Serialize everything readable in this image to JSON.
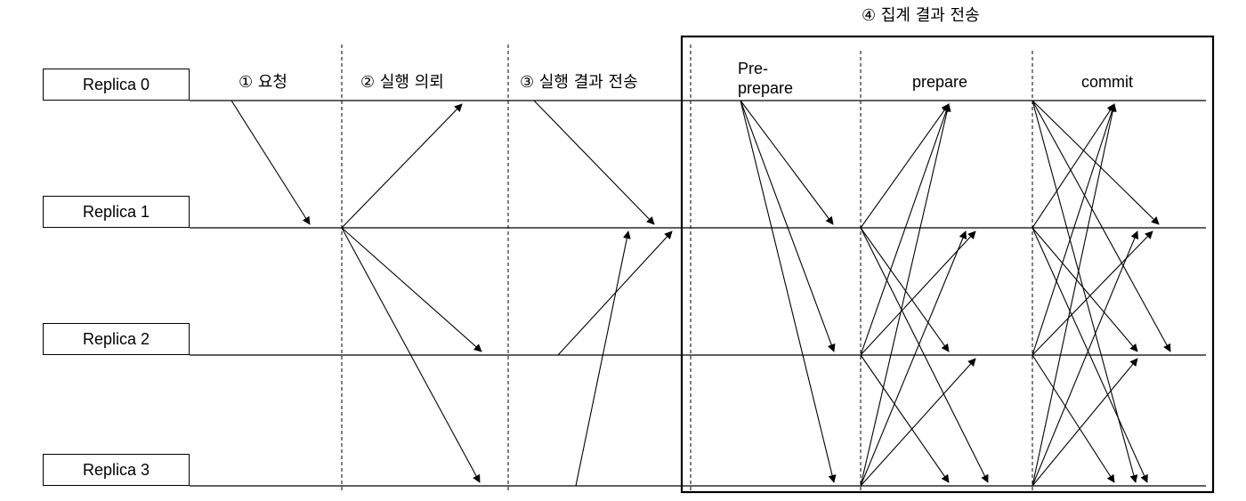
{
  "replicas": [
    "Replica 0",
    "Replica 1",
    "Replica 2",
    "Replica 3"
  ],
  "steps": {
    "request": "① 요청",
    "execute_request": "② 실행 의뢰",
    "send_result": "③ 실행 결과 전송",
    "aggregate": "④ 집계 결과 전송"
  },
  "phases": {
    "preprepare_line1": "Pre-",
    "preprepare_line2": "prepare",
    "prepare": "prepare",
    "commit": "commit"
  },
  "messages": [
    {
      "from": 0,
      "to": 1,
      "stage": "request"
    },
    {
      "from": 1,
      "to": 0,
      "stage": "execute_request"
    },
    {
      "from": 1,
      "to": 2,
      "stage": "execute_request"
    },
    {
      "from": 1,
      "to": 3,
      "stage": "execute_request"
    },
    {
      "from": 0,
      "to": 1,
      "stage": "send_result"
    },
    {
      "from": 2,
      "to": 1,
      "stage": "send_result"
    },
    {
      "from": 3,
      "to": 1,
      "stage": "send_result"
    },
    {
      "from": 0,
      "to": 1,
      "stage": "pre-prepare"
    },
    {
      "from": 0,
      "to": 2,
      "stage": "pre-prepare"
    },
    {
      "from": 0,
      "to": 3,
      "stage": "pre-prepare"
    },
    {
      "from": 1,
      "to": 0,
      "stage": "prepare"
    },
    {
      "from": 1,
      "to": 2,
      "stage": "prepare"
    },
    {
      "from": 1,
      "to": 3,
      "stage": "prepare"
    },
    {
      "from": 2,
      "to": 0,
      "stage": "prepare"
    },
    {
      "from": 2,
      "to": 1,
      "stage": "prepare"
    },
    {
      "from": 2,
      "to": 3,
      "stage": "prepare"
    },
    {
      "from": 3,
      "to": 0,
      "stage": "prepare"
    },
    {
      "from": 3,
      "to": 1,
      "stage": "prepare"
    },
    {
      "from": 3,
      "to": 2,
      "stage": "prepare"
    },
    {
      "from": 0,
      "to": 1,
      "stage": "commit"
    },
    {
      "from": 0,
      "to": 2,
      "stage": "commit"
    },
    {
      "from": 0,
      "to": 3,
      "stage": "commit"
    },
    {
      "from": 1,
      "to": 0,
      "stage": "commit"
    },
    {
      "from": 1,
      "to": 2,
      "stage": "commit"
    },
    {
      "from": 1,
      "to": 3,
      "stage": "commit"
    },
    {
      "from": 2,
      "to": 0,
      "stage": "commit"
    },
    {
      "from": 2,
      "to": 1,
      "stage": "commit"
    },
    {
      "from": 2,
      "to": 3,
      "stage": "commit"
    },
    {
      "from": 3,
      "to": 0,
      "stage": "commit"
    },
    {
      "from": 3,
      "to": 1,
      "stage": "commit"
    },
    {
      "from": 3,
      "to": 2,
      "stage": "commit"
    }
  ]
}
